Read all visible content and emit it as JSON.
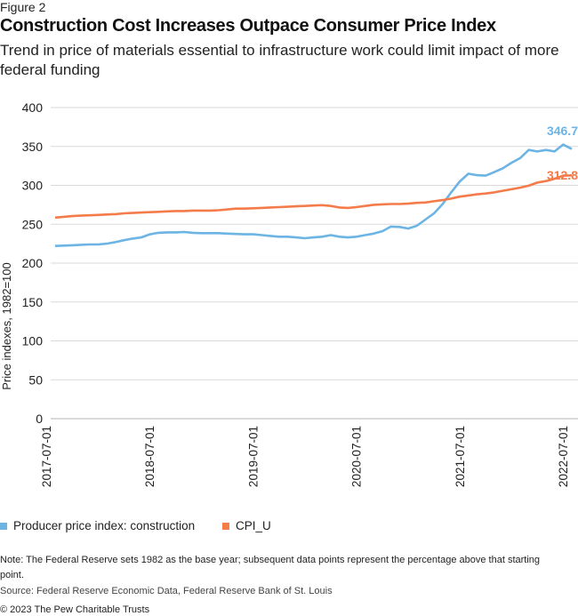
{
  "figure_label": "Figure 2",
  "title": "Construction Cost Increases Outpace Consumer Price Index",
  "subtitle": "Trend in price of materials essential to infrastructure work could limit impact of more federal funding",
  "note": "Note: The Federal Reserve sets 1982 as the base year; subsequent data points represent the percentage above that starting point.",
  "source": "Source: Federal Reserve Economic Data, Federal Reserve Bank of St. Louis",
  "copyright": "© 2023 The Pew Charitable Trusts",
  "chart_data": {
    "type": "line",
    "title": "",
    "xlabel": "",
    "ylabel": "Price indexes, 1982=100",
    "ylim": [
      0,
      400
    ],
    "yticks": [
      0,
      50,
      100,
      150,
      200,
      250,
      300,
      350,
      400
    ],
    "x_start": "2017-07-01",
    "x_frequency": "monthly",
    "xtick_labels": [
      "2017-07-01",
      "2018-07-01",
      "2019-07-01",
      "2020-07-01",
      "2021-07-01",
      "2022-07-01"
    ],
    "grid": "horizontal",
    "legend_position": "bottom",
    "series": [
      {
        "name": "Producer price index: construction",
        "color": "#6CB4E4",
        "end_label": "346.7",
        "values": [
          222,
          222.5,
          223,
          223.5,
          224,
          224,
          225,
          227,
          229.5,
          231.5,
          233,
          237,
          239,
          239.5,
          239.5,
          240,
          239,
          238.5,
          238.5,
          238.5,
          238,
          237.5,
          237,
          237,
          236,
          235,
          234,
          234,
          233,
          232,
          233,
          234,
          236,
          234,
          233,
          234,
          236,
          238,
          241,
          247,
          246.5,
          244.5,
          248,
          256,
          264,
          276,
          291,
          305,
          315,
          313,
          312.5,
          317,
          322,
          329,
          335,
          345.5,
          343.5,
          345.5,
          343.5,
          352.5,
          346.7
        ]
      },
      {
        "name": "CPI_U",
        "color": "#F47B4A",
        "end_label": "312.8",
        "values": [
          258.5,
          259.5,
          260.5,
          261,
          261.5,
          262,
          262.5,
          263,
          264,
          264.5,
          265,
          265.5,
          266,
          266.5,
          267,
          267,
          267.5,
          267.5,
          267.5,
          268,
          269,
          270,
          270,
          270.5,
          271,
          271.5,
          272,
          272.5,
          273,
          273.5,
          274,
          274.5,
          273.5,
          271.5,
          271,
          272,
          273.5,
          275,
          275.5,
          276,
          276,
          276.5,
          277.5,
          278,
          279.5,
          281,
          283,
          285.5,
          287,
          288.5,
          289.5,
          291,
          293,
          295,
          297,
          299.5,
          303.5,
          305.5,
          308.5,
          312.5,
          312.8
        ]
      }
    ]
  }
}
